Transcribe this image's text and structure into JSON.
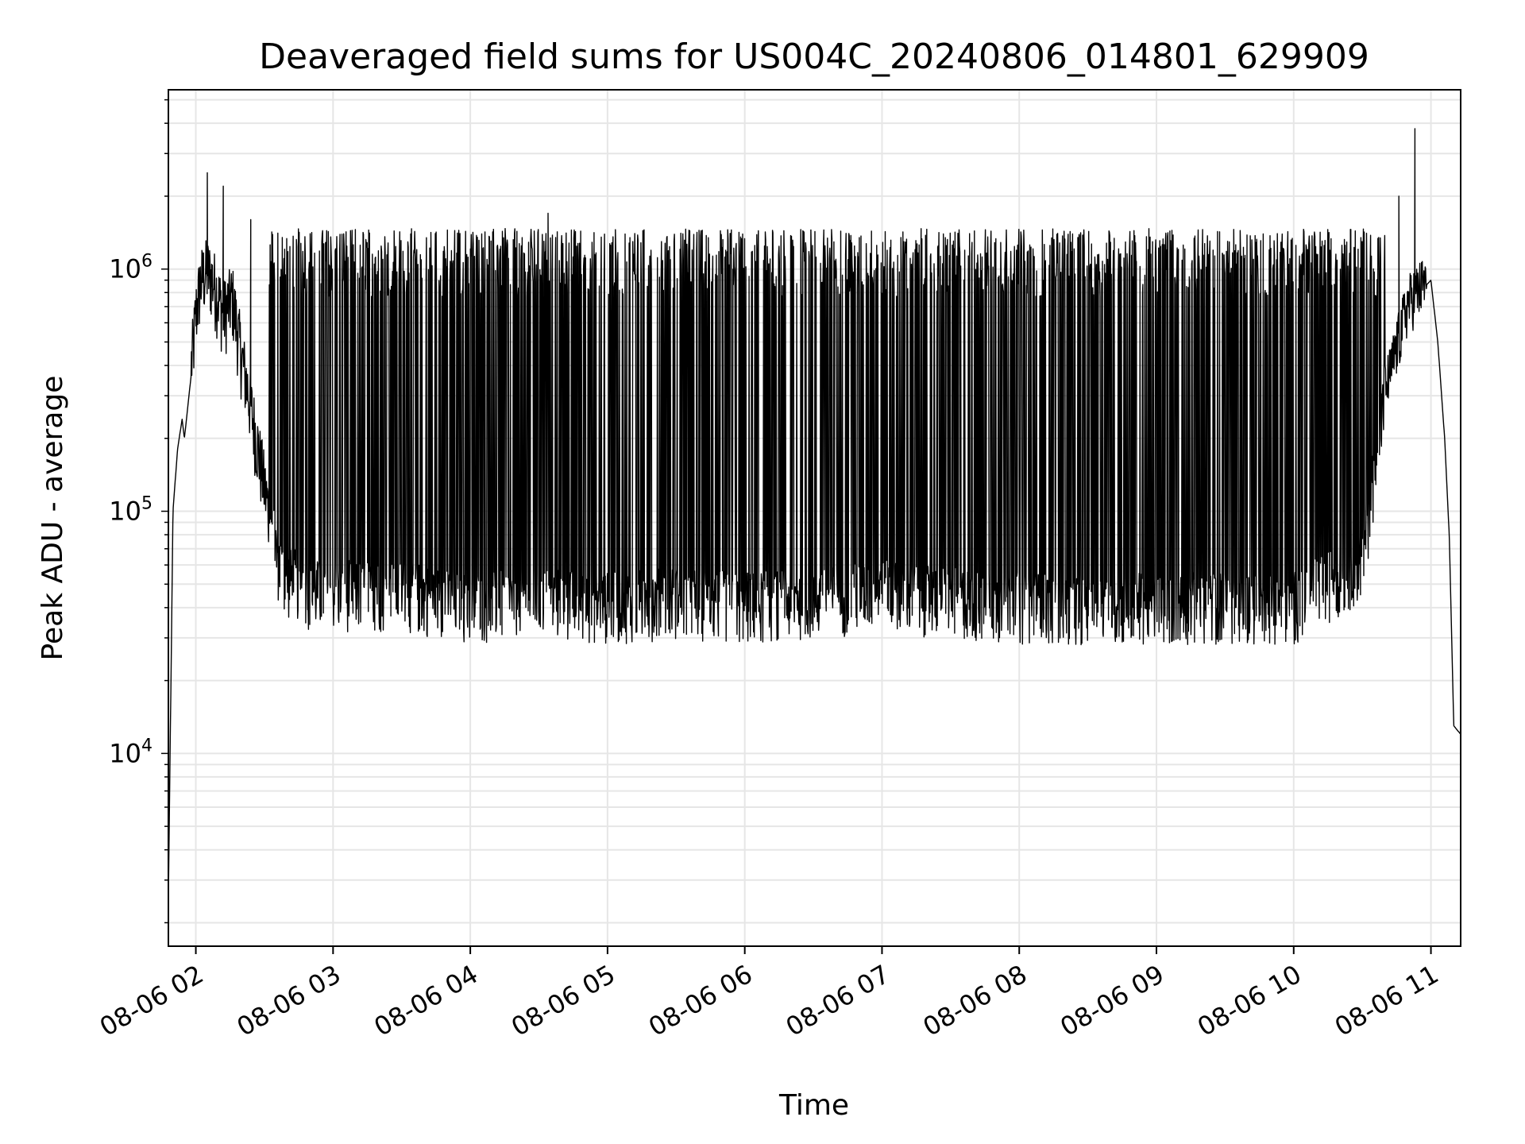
{
  "chart_data": {
    "type": "line",
    "title": "Deaveraged field sums for US004C_20240806_014801_629909",
    "xlabel": "Time",
    "ylabel": "Peak ADU - average",
    "x_scale": "time",
    "y_scale": "log",
    "xlim": [
      "2024-08-06 01:48",
      "2024-08-06 11:13"
    ],
    "ylim": [
      1600,
      5500000
    ],
    "grid": true,
    "line_color": "#000000",
    "x_ticks": [
      {
        "value": "2024-08-06 02:00",
        "label": "08-06 02"
      },
      {
        "value": "2024-08-06 03:00",
        "label": "08-06 03"
      },
      {
        "value": "2024-08-06 04:00",
        "label": "08-06 04"
      },
      {
        "value": "2024-08-06 05:00",
        "label": "08-06 05"
      },
      {
        "value": "2024-08-06 06:00",
        "label": "08-06 06"
      },
      {
        "value": "2024-08-06 07:00",
        "label": "08-06 07"
      },
      {
        "value": "2024-08-06 08:00",
        "label": "08-06 08"
      },
      {
        "value": "2024-08-06 09:00",
        "label": "08-06 09"
      },
      {
        "value": "2024-08-06 10:00",
        "label": "08-06 10"
      },
      {
        "value": "2024-08-06 11:00",
        "label": "08-06 11"
      }
    ],
    "y_ticks": [
      {
        "value": 10000,
        "base": "10",
        "exp": "4"
      },
      {
        "value": 100000,
        "base": "10",
        "exp": "5"
      },
      {
        "value": 1000000,
        "base": "10",
        "exp": "6"
      }
    ],
    "series": [
      {
        "x": [
          "2024-08-06 01:48",
          "2024-08-06 01:50",
          "2024-08-06 01:52",
          "2024-08-06 01:54",
          "2024-08-06 01:55",
          "2024-08-06 01:57",
          "2024-08-06 01:59",
          "2024-08-06 02:00",
          "2024-08-06 02:02",
          "2024-08-06 02:03",
          "2024-08-06 02:05",
          "2024-08-06 02:08",
          "2024-08-06 02:12",
          "2024-08-06 02:16",
          "2024-08-06 02:20",
          "2024-08-06 02:24",
          "2024-08-06 02:28",
          "2024-08-06 02:32",
          "2024-08-06 02:36",
          "2024-08-06 02:40",
          "2024-08-06 02:45",
          "2024-08-06 02:50",
          "2024-08-06 03:00",
          "2024-08-06 03:30",
          "2024-08-06 04:00",
          "2024-08-06 04:30",
          "2024-08-06 05:00",
          "2024-08-06 05:30",
          "2024-08-06 06:00",
          "2024-08-06 06:30",
          "2024-08-06 07:00",
          "2024-08-06 07:30",
          "2024-08-06 08:00",
          "2024-08-06 08:30",
          "2024-08-06 09:00",
          "2024-08-06 09:30",
          "2024-08-06 10:00",
          "2024-08-06 10:30",
          "2024-08-06 10:40",
          "2024-08-06 10:50",
          "2024-08-06 10:55",
          "2024-08-06 11:00",
          "2024-08-06 11:03",
          "2024-08-06 11:06",
          "2024-08-06 11:08",
          "2024-08-06 11:10",
          "2024-08-06 11:13"
        ],
        "y": [
          2500,
          100000,
          180000,
          240000,
          200000,
          300000,
          450000,
          600000,
          800000,
          850000,
          900000,
          800000,
          600000,
          700000,
          400000,
          250000,
          150000,
          90000,
          60000,
          50000,
          50000,
          45000,
          45000,
          45000,
          40000,
          42000,
          40000,
          42000,
          40000,
          42000,
          45000,
          42000,
          40000,
          40000,
          40000,
          40000,
          40000,
          60000,
          300000,
          700000,
          800000,
          900000,
          500000,
          200000,
          80000,
          13000,
          12000
        ]
      }
    ],
    "spikes": [
      {
        "x": "2024-08-06 02:05",
        "y": 2500000
      },
      {
        "x": "2024-08-06 02:12",
        "y": 2200000
      },
      {
        "x": "2024-08-06 02:24",
        "y": 1600000
      },
      {
        "x": "2024-08-06 04:34",
        "y": 1700000
      },
      {
        "x": "2024-08-06 10:46",
        "y": 2000000
      },
      {
        "x": "2024-08-06 10:53",
        "y": 3800000
      }
    ],
    "dense_band": {
      "start": "2024-08-06 02:32",
      "end": "2024-08-06 10:40",
      "upper": 1400000
    }
  }
}
